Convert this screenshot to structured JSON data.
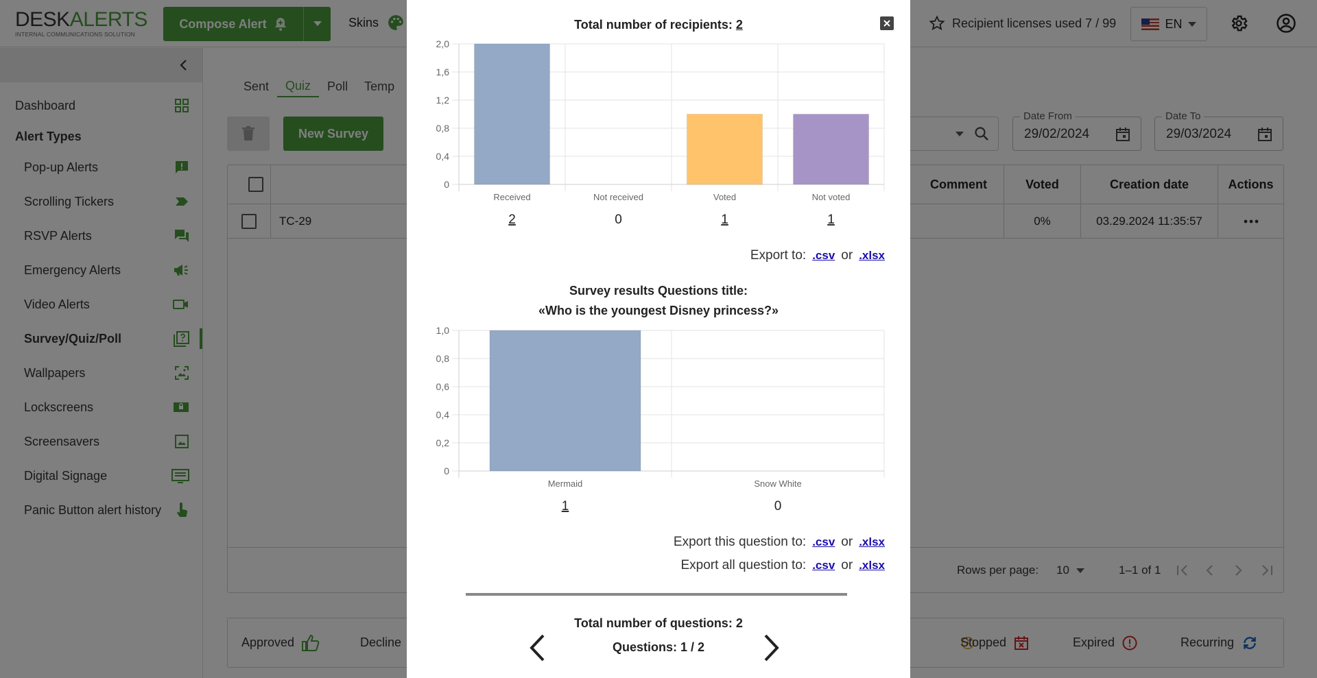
{
  "header": {
    "logo_desk": "DESK",
    "logo_alerts": "ALERTS",
    "logo_tagline": "INTERNAL COMMUNICATIONS SOLUTION",
    "compose_label": "Compose Alert",
    "skins_label": "Skins",
    "licenses_text": "Recipient licenses used 7 / 99",
    "language": "EN"
  },
  "sidebar": {
    "dashboard": "Dashboard",
    "section_title": "Alert Types",
    "items": [
      {
        "label": "Pop-up Alerts",
        "icon": "alert-message-icon"
      },
      {
        "label": "Scrolling Tickers",
        "icon": "ticker-tag-icon"
      },
      {
        "label": "RSVP Alerts",
        "icon": "chat-bubbles-icon"
      },
      {
        "label": "Emergency Alerts",
        "icon": "megaphone-icon"
      },
      {
        "label": "Video Alerts",
        "icon": "video-camera-icon"
      },
      {
        "label": "Survey/Quiz/Poll",
        "icon": "quiz-icon"
      },
      {
        "label": "Wallpapers",
        "icon": "wallpaper-icon"
      },
      {
        "label": "Lockscreens",
        "icon": "lockscreen-icon"
      },
      {
        "label": "Screensavers",
        "icon": "image-icon"
      },
      {
        "label": "Digital Signage",
        "icon": "signage-icon"
      },
      {
        "label": "Panic Button alert history",
        "icon": "touch-hand-icon"
      }
    ]
  },
  "main": {
    "tabs": [
      "Sent",
      "Quiz",
      "Poll",
      "Temp"
    ],
    "active_tab": "Quiz",
    "new_survey_label": "New Survey",
    "date_from_label": "Date From",
    "date_from_value": "29/02/2024",
    "date_to_label": "Date To",
    "date_to_value": "29/03/2024",
    "table": {
      "columns": [
        "Comment",
        "Voted",
        "Creation date",
        "Actions"
      ],
      "rows": [
        {
          "name": "TC-29",
          "voted": "0%",
          "created": "03.29.2024 11:35:57"
        }
      ],
      "rows_per_page_label": "Rows per page:",
      "rows_per_page_value": "10",
      "page_range": "1–1 of 1"
    },
    "legend": {
      "approved": "Approved",
      "decline": "Decline",
      "stopped": "Stopped",
      "expired": "Expired",
      "recurring": "Recurring"
    }
  },
  "modal": {
    "recipients_title_prefix": "Total number of recipients:",
    "recipients_total": "2",
    "export_to_label": "Export to:",
    "or_label": "or",
    "csv_label": ".csv",
    "xlsx_label": ".xlsx",
    "survey_results_title": "Survey results Questions title:",
    "question_title": "«Who is the youngest Disney princess?»",
    "export_this_label": "Export this question to:",
    "export_all_label": "Export all question to:",
    "total_questions_text": "Total number of questions: 2",
    "question_counter": "Questions: 1 / 2"
  },
  "chart_data": [
    {
      "type": "bar",
      "categories": [
        "Received",
        "Not received",
        "Voted",
        "Not voted"
      ],
      "values": [
        2,
        0,
        1,
        1
      ],
      "colors": [
        "#93a9c6",
        "#d0d0d0",
        "#ffc46b",
        "#a794c6"
      ],
      "ylim": [
        0,
        2
      ],
      "yticks": [
        "0",
        "0,4",
        "0,8",
        "1,2",
        "1,6",
        "2,0"
      ],
      "grid": true
    },
    {
      "type": "bar",
      "categories": [
        "Mermaid",
        "Snow White"
      ],
      "values": [
        1,
        0
      ],
      "colors": [
        "#93a9c6",
        "#93a9c6"
      ],
      "ylim": [
        0,
        1
      ],
      "yticks": [
        "0",
        "0,2",
        "0,4",
        "0,6",
        "0,8",
        "1,0"
      ],
      "grid": true
    }
  ]
}
